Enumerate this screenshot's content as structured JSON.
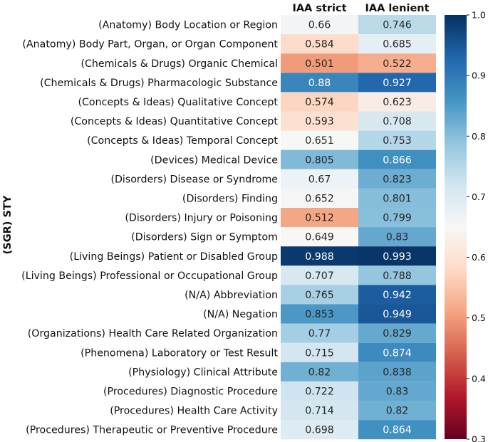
{
  "chart_data": {
    "type": "heatmap",
    "title": "",
    "xlabel": "",
    "ylabel": "(SGR) STY",
    "columns": [
      "IAA strict",
      "IAA lenient"
    ],
    "rows": [
      "(Anatomy) Body Location or Region",
      "(Anatomy) Body Part, Organ, or Organ Component",
      "(Chemicals & Drugs) Organic Chemical",
      "(Chemicals & Drugs) Pharmacologic Substance",
      "(Concepts & Ideas) Qualitative Concept",
      "(Concepts & Ideas) Quantitative Concept",
      "(Concepts & Ideas) Temporal Concept",
      "(Devices) Medical Device",
      "(Disorders) Disease or Syndrome",
      "(Disorders) Finding",
      "(Disorders) Injury or Poisoning",
      "(Disorders) Sign or Symptom",
      "(Living Beings) Patient or Disabled Group",
      "(Living Beings) Professional or Occupational Group",
      "(N/A) Abbreviation",
      "(N/A) Negation",
      "(Organizations) Health Care Related Organization",
      "(Phenomena) Laboratory or Test Result",
      "(Physiology) Clinical Attribute",
      "(Procedures) Diagnostic Procedure",
      "(Procedures) Health Care Activity",
      "(Procedures) Therapeutic or Preventive Procedure"
    ],
    "values": [
      [
        0.66,
        0.746
      ],
      [
        0.584,
        0.685
      ],
      [
        0.501,
        0.522
      ],
      [
        0.88,
        0.927
      ],
      [
        0.574,
        0.623
      ],
      [
        0.593,
        0.708
      ],
      [
        0.651,
        0.753
      ],
      [
        0.805,
        0.866
      ],
      [
        0.67,
        0.823
      ],
      [
        0.652,
        0.801
      ],
      [
        0.512,
        0.799
      ],
      [
        0.649,
        0.83
      ],
      [
        0.988,
        0.993
      ],
      [
        0.707,
        0.788
      ],
      [
        0.765,
        0.942
      ],
      [
        0.853,
        0.949
      ],
      [
        0.77,
        0.829
      ],
      [
        0.715,
        0.874
      ],
      [
        0.82,
        0.838
      ],
      [
        0.722,
        0.83
      ],
      [
        0.714,
        0.82
      ],
      [
        0.698,
        0.864
      ]
    ],
    "colormap": "RdBu",
    "vmin": 0.3,
    "vmax": 1.0,
    "colorbar_ticks": [
      "0.3",
      "0.4",
      "0.5",
      "0.6",
      "0.7",
      "0.8",
      "0.9",
      "1.0"
    ]
  }
}
